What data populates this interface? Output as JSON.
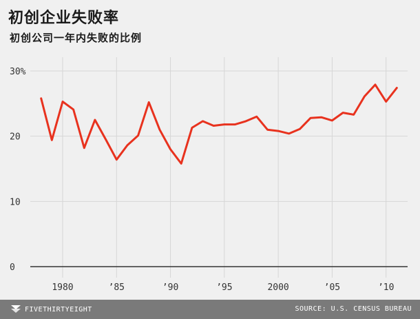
{
  "header": {
    "title": "初创企业失败率",
    "subtitle": "初创公司一年内失败的比例"
  },
  "footer": {
    "brand": "FIVETHIRTYEIGHT",
    "source": "SOURCE: U.S. CENSUS BUREAU"
  },
  "colors": {
    "line": "#e8321e",
    "background": "#f0f0f0",
    "grid": "#d6d6d6",
    "footer": "#7a7a7a"
  },
  "chart_data": {
    "type": "line",
    "title": "初创企业失败率",
    "subtitle": "初创公司一年内失败的比例",
    "xlabel": "",
    "ylabel": "",
    "xlim": [
      1977,
      2012
    ],
    "ylim": [
      0,
      30
    ],
    "grid": true,
    "y_ticks": [
      {
        "value": 0,
        "label": "0"
      },
      {
        "value": 10,
        "label": "10"
      },
      {
        "value": 20,
        "label": "20"
      },
      {
        "value": 30,
        "label": "30%"
      }
    ],
    "x_ticks": [
      {
        "value": 1980,
        "label": "1980"
      },
      {
        "value": 1985,
        "label": "’85"
      },
      {
        "value": 1990,
        "label": "’90"
      },
      {
        "value": 1995,
        "label": "’95"
      },
      {
        "value": 2000,
        "label": "2000"
      },
      {
        "value": 2005,
        "label": "’05"
      },
      {
        "value": 2010,
        "label": "’10"
      }
    ],
    "series": [
      {
        "x": [
          1978,
          1979,
          1980,
          1981,
          1982,
          1983,
          1984,
          1985,
          1986,
          1987,
          1988,
          1989,
          1990,
          1991,
          1992,
          1993,
          1994,
          1995,
          1996,
          1997,
          1998,
          1999,
          2000,
          2001,
          2002,
          2003,
          2004,
          2005,
          2006,
          2007,
          2008,
          2009,
          2010,
          2011
        ],
        "values": [
          25.8,
          19.4,
          25.3,
          24.1,
          18.2,
          22.5,
          19.5,
          16.4,
          18.6,
          20.1,
          25.2,
          21.0,
          18.0,
          15.8,
          21.3,
          22.3,
          21.6,
          21.8,
          21.8,
          22.3,
          23.0,
          21.0,
          20.8,
          20.4,
          21.1,
          22.8,
          22.9,
          22.4,
          23.6,
          23.3,
          26.1,
          27.9,
          25.3,
          27.4
        ]
      }
    ]
  }
}
